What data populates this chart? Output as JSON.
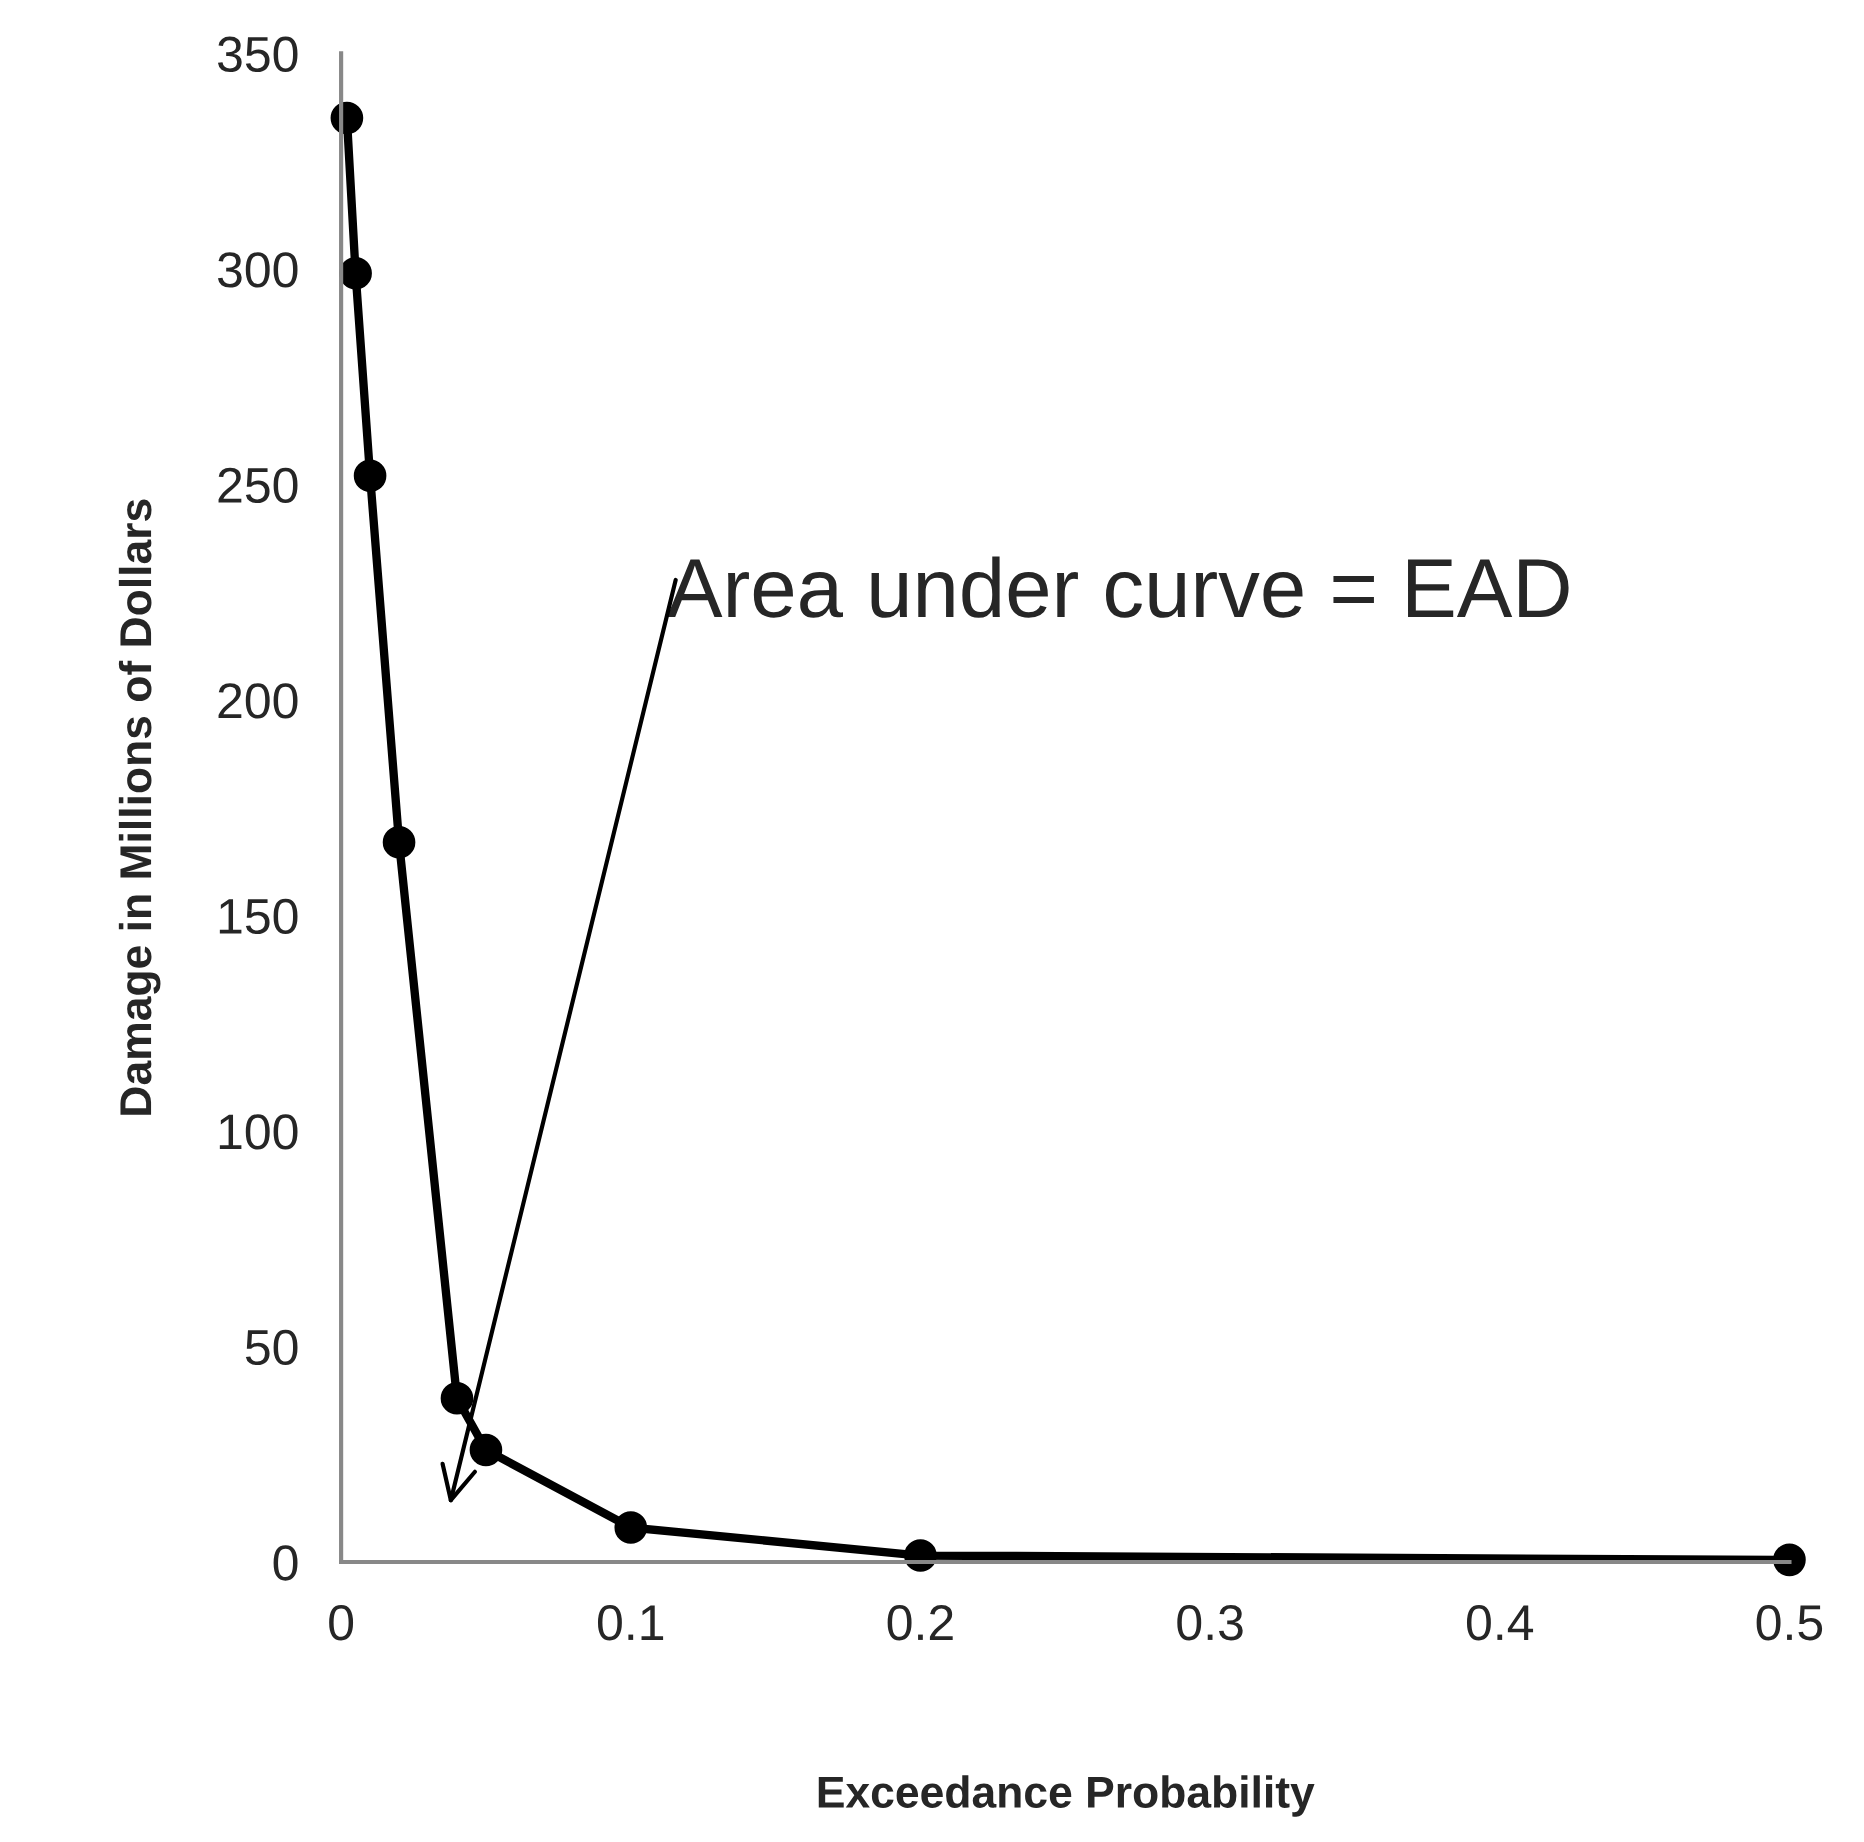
{
  "chart_data": {
    "type": "line",
    "xlabel": "Exceedance Probability",
    "ylabel": "Damage in Millions of Dollars",
    "x": [
      0.002,
      0.005,
      0.01,
      0.02,
      0.04,
      0.05,
      0.1,
      0.2,
      0.5
    ],
    "series": [
      {
        "color": "#000000",
        "values": [
          335,
          299,
          252,
          167,
          38,
          26,
          8,
          1.5,
          0.5
        ]
      }
    ],
    "xlim": [
      0,
      0.5
    ],
    "xticks": [
      0,
      0.1,
      0.2,
      0.3,
      0.4,
      0.5
    ],
    "ylim": [
      0,
      350
    ],
    "yticks": [
      0,
      50,
      100,
      150,
      200,
      250,
      300,
      350
    ],
    "grid": false,
    "marker": "circle",
    "line_style": "solid",
    "annotations": [
      "Area under curve = EAD"
    ]
  }
}
